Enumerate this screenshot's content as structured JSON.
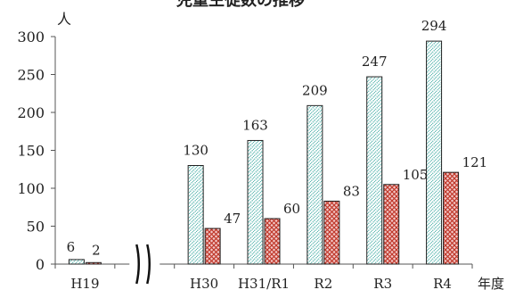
{
  "chart_data": {
    "type": "bar",
    "title": "児童生徒数の推移",
    "ylabel": "人",
    "xlabel": "年度",
    "ylim": [
      0,
      300
    ],
    "yticks": [
      0,
      50,
      100,
      150,
      200,
      250,
      300
    ],
    "categories": [
      "H19",
      "",
      "H30",
      "H31/R1",
      "R2",
      "R3",
      "R4"
    ],
    "axis_break": true,
    "grid": false,
    "legend": "none",
    "series": [
      {
        "pattern": "dotted-hatch",
        "color": "#2aa198",
        "values": [
          6,
          null,
          130,
          163,
          209,
          247,
          294
        ],
        "data_labels": [
          "6",
          "",
          "130",
          "163",
          "209",
          "247",
          "294"
        ]
      },
      {
        "pattern": "crosshatch",
        "color": "#c0392b",
        "values": [
          2,
          null,
          47,
          60,
          83,
          105,
          121
        ],
        "data_labels": [
          "2",
          "",
          "47",
          "60",
          "83",
          "105",
          "121"
        ]
      }
    ]
  }
}
